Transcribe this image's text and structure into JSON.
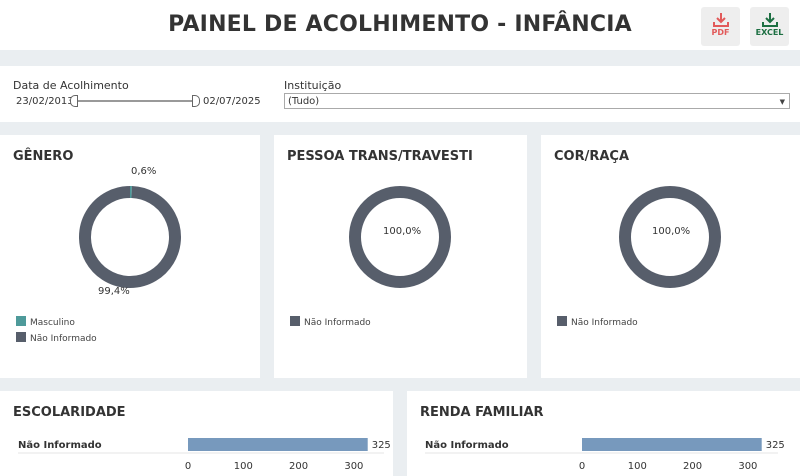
{
  "header": {
    "title": "PAINEL DE ACOLHIMENTO - INFÂNCIA",
    "pdf_label": "PDF",
    "excel_label": "EXCEL"
  },
  "filters": {
    "date_label": "Data de Acolhimento",
    "date_start": "23/02/2013",
    "date_end": "02/07/2025",
    "institution_label": "Instituição",
    "institution_value": "(Tudo)"
  },
  "colors": {
    "teal": "#4e9a9a",
    "slate": "#575e6b",
    "bar": "#7799bd",
    "pdf": "#e25a5a",
    "excel": "#1d6f42"
  },
  "icons": {
    "pdf": "download-icon",
    "excel": "download-icon",
    "dropdown": "chevron-down-icon"
  },
  "chart_data": [
    {
      "id": "genero",
      "type": "pie",
      "title": "GÊNERO",
      "slices": [
        {
          "label": "Masculino",
          "value": 0.6,
          "display": "0,6%",
          "color": "#4e9a9a"
        },
        {
          "label": "Não Informado",
          "value": 99.4,
          "display": "99,4%",
          "color": "#575e6b"
        }
      ],
      "legend": [
        "Masculino",
        "Não Informado"
      ]
    },
    {
      "id": "trans",
      "type": "pie",
      "title": "PESSOA TRANS/TRAVESTI",
      "slices": [
        {
          "label": "Não Informado",
          "value": 100,
          "display": "100,0%",
          "color": "#575e6b"
        }
      ],
      "legend": [
        "Não Informado"
      ]
    },
    {
      "id": "cor",
      "type": "pie",
      "title": "COR/RAÇA",
      "slices": [
        {
          "label": "Não Informado",
          "value": 100,
          "display": "100,0%",
          "color": "#575e6b"
        }
      ],
      "legend": [
        "Não Informado"
      ]
    },
    {
      "id": "escolaridade",
      "type": "bar",
      "title": "ESCOLARIDADE",
      "categories": [
        "Não Informado"
      ],
      "values": [
        325
      ],
      "value_labels": [
        "325"
      ],
      "xlim": [
        0,
        340
      ],
      "ticks": [
        0,
        100,
        200,
        300
      ],
      "tick_labels": [
        "0",
        "100",
        "200",
        "300"
      ]
    },
    {
      "id": "renda",
      "type": "bar",
      "title": "RENDA FAMILIAR",
      "categories": [
        "Não Informado"
      ],
      "values": [
        325
      ],
      "value_labels": [
        "325"
      ],
      "xlim": [
        0,
        340
      ],
      "ticks": [
        0,
        100,
        200,
        300
      ],
      "tick_labels": [
        "0",
        "100",
        "200",
        "300"
      ]
    }
  ]
}
